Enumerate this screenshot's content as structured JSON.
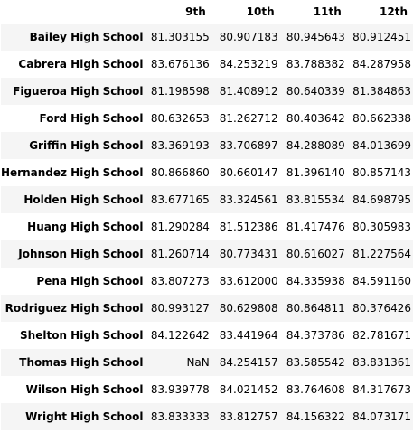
{
  "table": {
    "columns": [
      "9th",
      "10th",
      "11th",
      "12th"
    ],
    "rows": [
      {
        "school": "Bailey High School",
        "values": [
          "81.303155",
          "80.907183",
          "80.945643",
          "80.912451"
        ]
      },
      {
        "school": "Cabrera High School",
        "values": [
          "83.676136",
          "84.253219",
          "83.788382",
          "84.287958"
        ]
      },
      {
        "school": "Figueroa High School",
        "values": [
          "81.198598",
          "81.408912",
          "80.640339",
          "81.384863"
        ]
      },
      {
        "school": "Ford High School",
        "values": [
          "80.632653",
          "81.262712",
          "80.403642",
          "80.662338"
        ]
      },
      {
        "school": "Griffin High School",
        "values": [
          "83.369193",
          "83.706897",
          "84.288089",
          "84.013699"
        ]
      },
      {
        "school": "Hernandez High School",
        "values": [
          "80.866860",
          "80.660147",
          "81.396140",
          "80.857143"
        ]
      },
      {
        "school": "Holden High School",
        "values": [
          "83.677165",
          "83.324561",
          "83.815534",
          "84.698795"
        ]
      },
      {
        "school": "Huang High School",
        "values": [
          "81.290284",
          "81.512386",
          "81.417476",
          "80.305983"
        ]
      },
      {
        "school": "Johnson High School",
        "values": [
          "81.260714",
          "80.773431",
          "80.616027",
          "81.227564"
        ]
      },
      {
        "school": "Pena High School",
        "values": [
          "83.807273",
          "83.612000",
          "84.335938",
          "84.591160"
        ]
      },
      {
        "school": "Rodriguez High School",
        "values": [
          "80.993127",
          "80.629808",
          "80.864811",
          "80.376426"
        ]
      },
      {
        "school": "Shelton High School",
        "values": [
          "84.122642",
          "83.441964",
          "84.373786",
          "82.781671"
        ]
      },
      {
        "school": "Thomas High School",
        "values": [
          "NaN",
          "84.254157",
          "83.585542",
          "83.831361"
        ]
      },
      {
        "school": "Wilson High School",
        "values": [
          "83.939778",
          "84.021452",
          "83.764608",
          "84.317673"
        ]
      },
      {
        "school": "Wright High School",
        "values": [
          "83.833333",
          "83.812757",
          "84.156322",
          "84.073171"
        ]
      }
    ]
  }
}
